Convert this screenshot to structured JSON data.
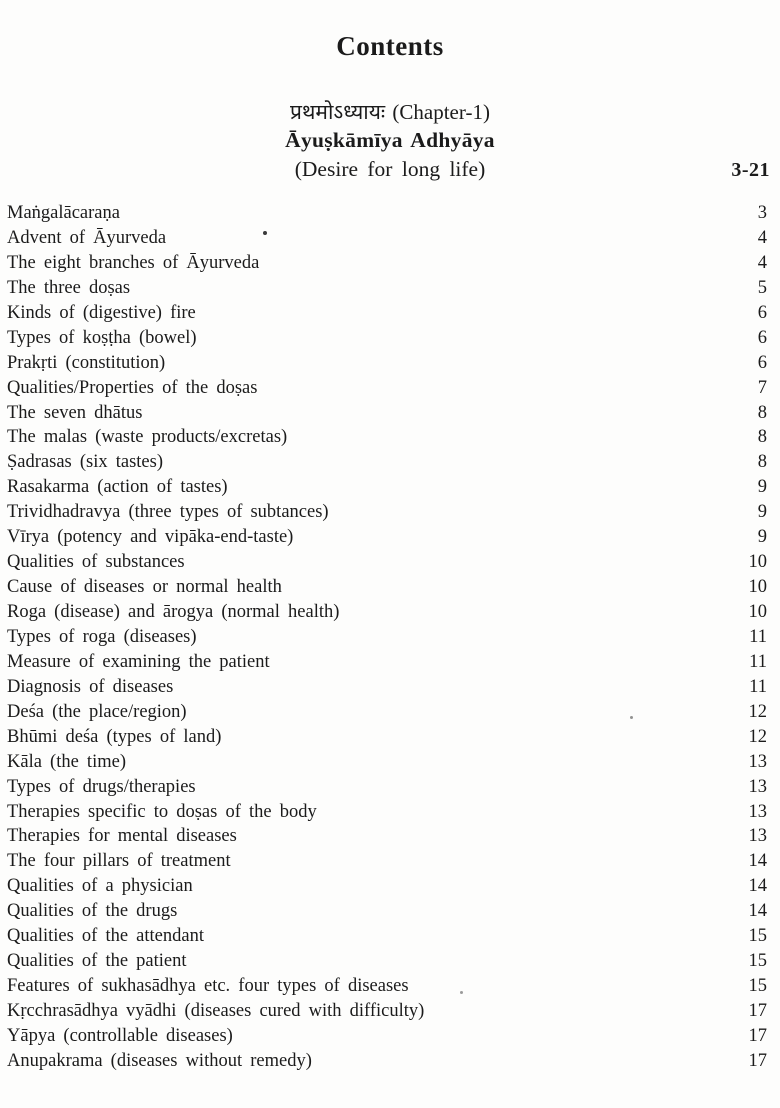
{
  "title": "Contents",
  "chapter": {
    "sanskrit": "प्रथमोऽध्यायः (Chapter-1)",
    "title": "Āyuṣkāmīya Adhyāya",
    "subtitle": "(Desire for long life)",
    "page_range": "3-21"
  },
  "entries": [
    {
      "label": "Maṅgalācaraṇa",
      "page": "3"
    },
    {
      "label": "Advent of Āyurveda",
      "page": "4"
    },
    {
      "label": "The eight branches of Āyurveda",
      "page": "4"
    },
    {
      "label": "The three doṣas",
      "page": "5"
    },
    {
      "label": "Kinds of (digestive) fire",
      "page": "6"
    },
    {
      "label": "Types of koṣṭha (bowel)",
      "page": "6"
    },
    {
      "label": "Prakṛti (constitution)",
      "page": "6"
    },
    {
      "label": "Qualities/Properties of the doṣas",
      "page": "7"
    },
    {
      "label": "The seven dhātus",
      "page": "8"
    },
    {
      "label": "The malas (waste products/excretas)",
      "page": "8"
    },
    {
      "label": "Ṣadrasas (six tastes)",
      "page": "8"
    },
    {
      "label": "Rasakarma (action of tastes)",
      "page": "9"
    },
    {
      "label": "Trividhadravya (three types of subtances)",
      "page": "9"
    },
    {
      "label": "Vīrya (potency and vipāka-end-taste)",
      "page": "9"
    },
    {
      "label": "Qualities of substances",
      "page": "10"
    },
    {
      "label": "Cause of diseases or normal health",
      "page": "10"
    },
    {
      "label": "Roga (disease) and ārogya (normal health)",
      "page": "10"
    },
    {
      "label": "Types of roga (diseases)",
      "page": "11"
    },
    {
      "label": "Measure of examining the patient",
      "page": "11"
    },
    {
      "label": "Diagnosis of diseases",
      "page": "11"
    },
    {
      "label": "Deśa (the place/region)",
      "page": "12"
    },
    {
      "label": "Bhūmi deśa (types of land)",
      "page": "12"
    },
    {
      "label": "Kāla (the time)",
      "page": "13"
    },
    {
      "label": "Types of drugs/therapies",
      "page": "13"
    },
    {
      "label": "Therapies specific to doṣas of the body",
      "page": "13"
    },
    {
      "label": "Therapies for mental diseases",
      "page": "13"
    },
    {
      "label": "The four pillars of treatment",
      "page": "14"
    },
    {
      "label": "Qualities of a physician",
      "page": "14"
    },
    {
      "label": "Qualities of the drugs",
      "page": "14"
    },
    {
      "label": "Qualities of the attendant",
      "page": "15"
    },
    {
      "label": "Qualities of the patient",
      "page": "15"
    },
    {
      "label": "Features of sukhasādhya etc. four types of diseases",
      "page": "15"
    },
    {
      "label": "Kṛcchrasādhya vyādhi (diseases cured with difficulty)",
      "page": "17"
    },
    {
      "label": "Yāpya (controllable diseases)",
      "page": "17"
    },
    {
      "label": "Anupakrama (diseases without remedy)",
      "page": "17"
    }
  ]
}
